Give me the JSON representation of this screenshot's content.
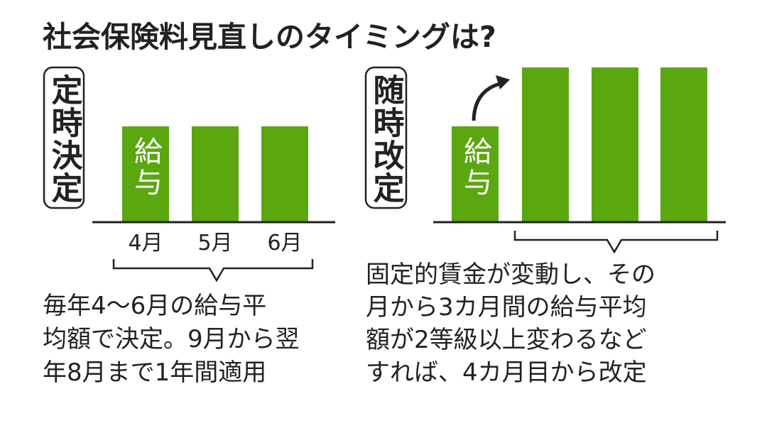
{
  "title": "社会保険料見直しのタイミングは?",
  "left": {
    "label": "定時決定",
    "bar_label": "給与",
    "months": [
      "4月",
      "5月",
      "6月"
    ],
    "description": [
      "毎年4〜6月の給与平",
      "均額で決定。9月から翌",
      "年8月まで1年間適用"
    ]
  },
  "right": {
    "label": "随時改定",
    "bar_label": "給与",
    "description": [
      "固定的賃金が変動し、その",
      "月から3カ月間の給与平均",
      "額が2等級以上変わるなど",
      "すれば、4カ月目から改定"
    ]
  }
}
